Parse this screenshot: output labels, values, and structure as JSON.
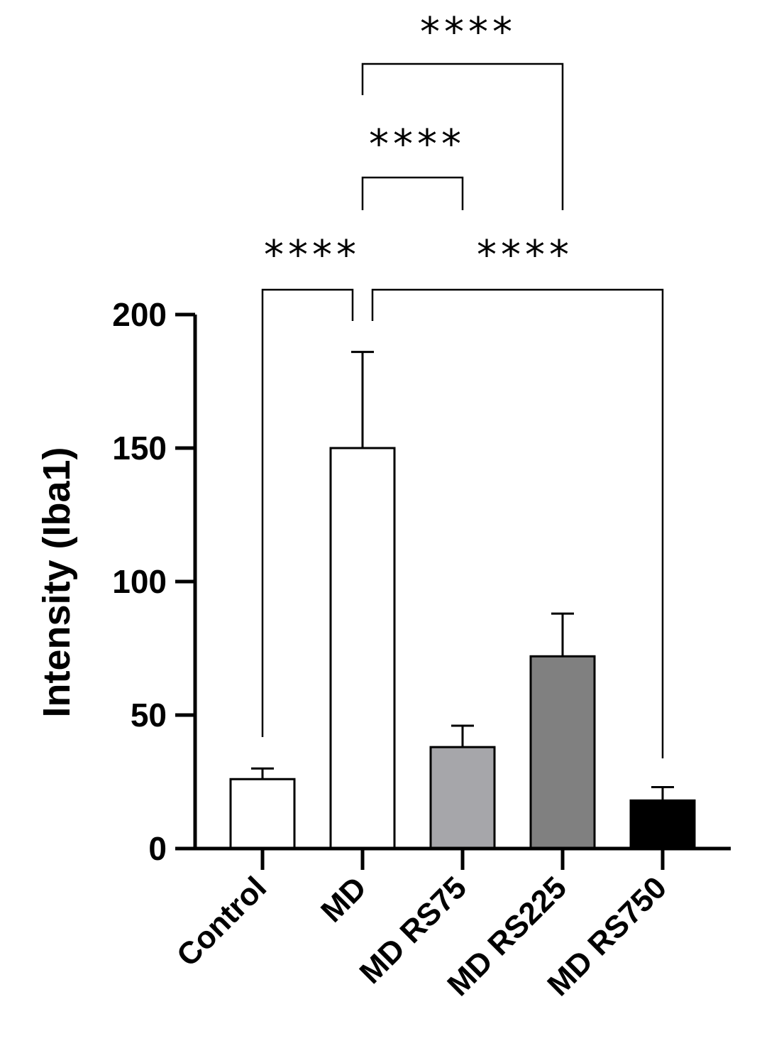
{
  "chart_data": {
    "type": "bar",
    "title": "",
    "xlabel": "",
    "ylabel": "Intensity (Iba1)",
    "ylim": [
      0,
      200
    ],
    "yticks": [
      0,
      50,
      100,
      150,
      200
    ],
    "categories": [
      "Control",
      "MD",
      "MD RS75",
      "MD RS225",
      "MD RS750"
    ],
    "values": [
      26,
      150,
      38,
      72,
      18
    ],
    "errors": [
      4,
      36,
      8,
      16,
      5
    ],
    "colors": [
      "#ffffff",
      "#ffffff",
      "#a6a6aa",
      "#808080",
      "#000000"
    ],
    "grid": false,
    "legend": "none",
    "comparisons": [
      {
        "from": "Control",
        "to": "MD",
        "label": "****"
      },
      {
        "from": "MD",
        "to": "MD RS750",
        "label": "****"
      },
      {
        "from": "MD",
        "to": "MD RS75",
        "label": "****"
      },
      {
        "from": "MD",
        "to": "MD RS225",
        "label": "****"
      }
    ]
  }
}
